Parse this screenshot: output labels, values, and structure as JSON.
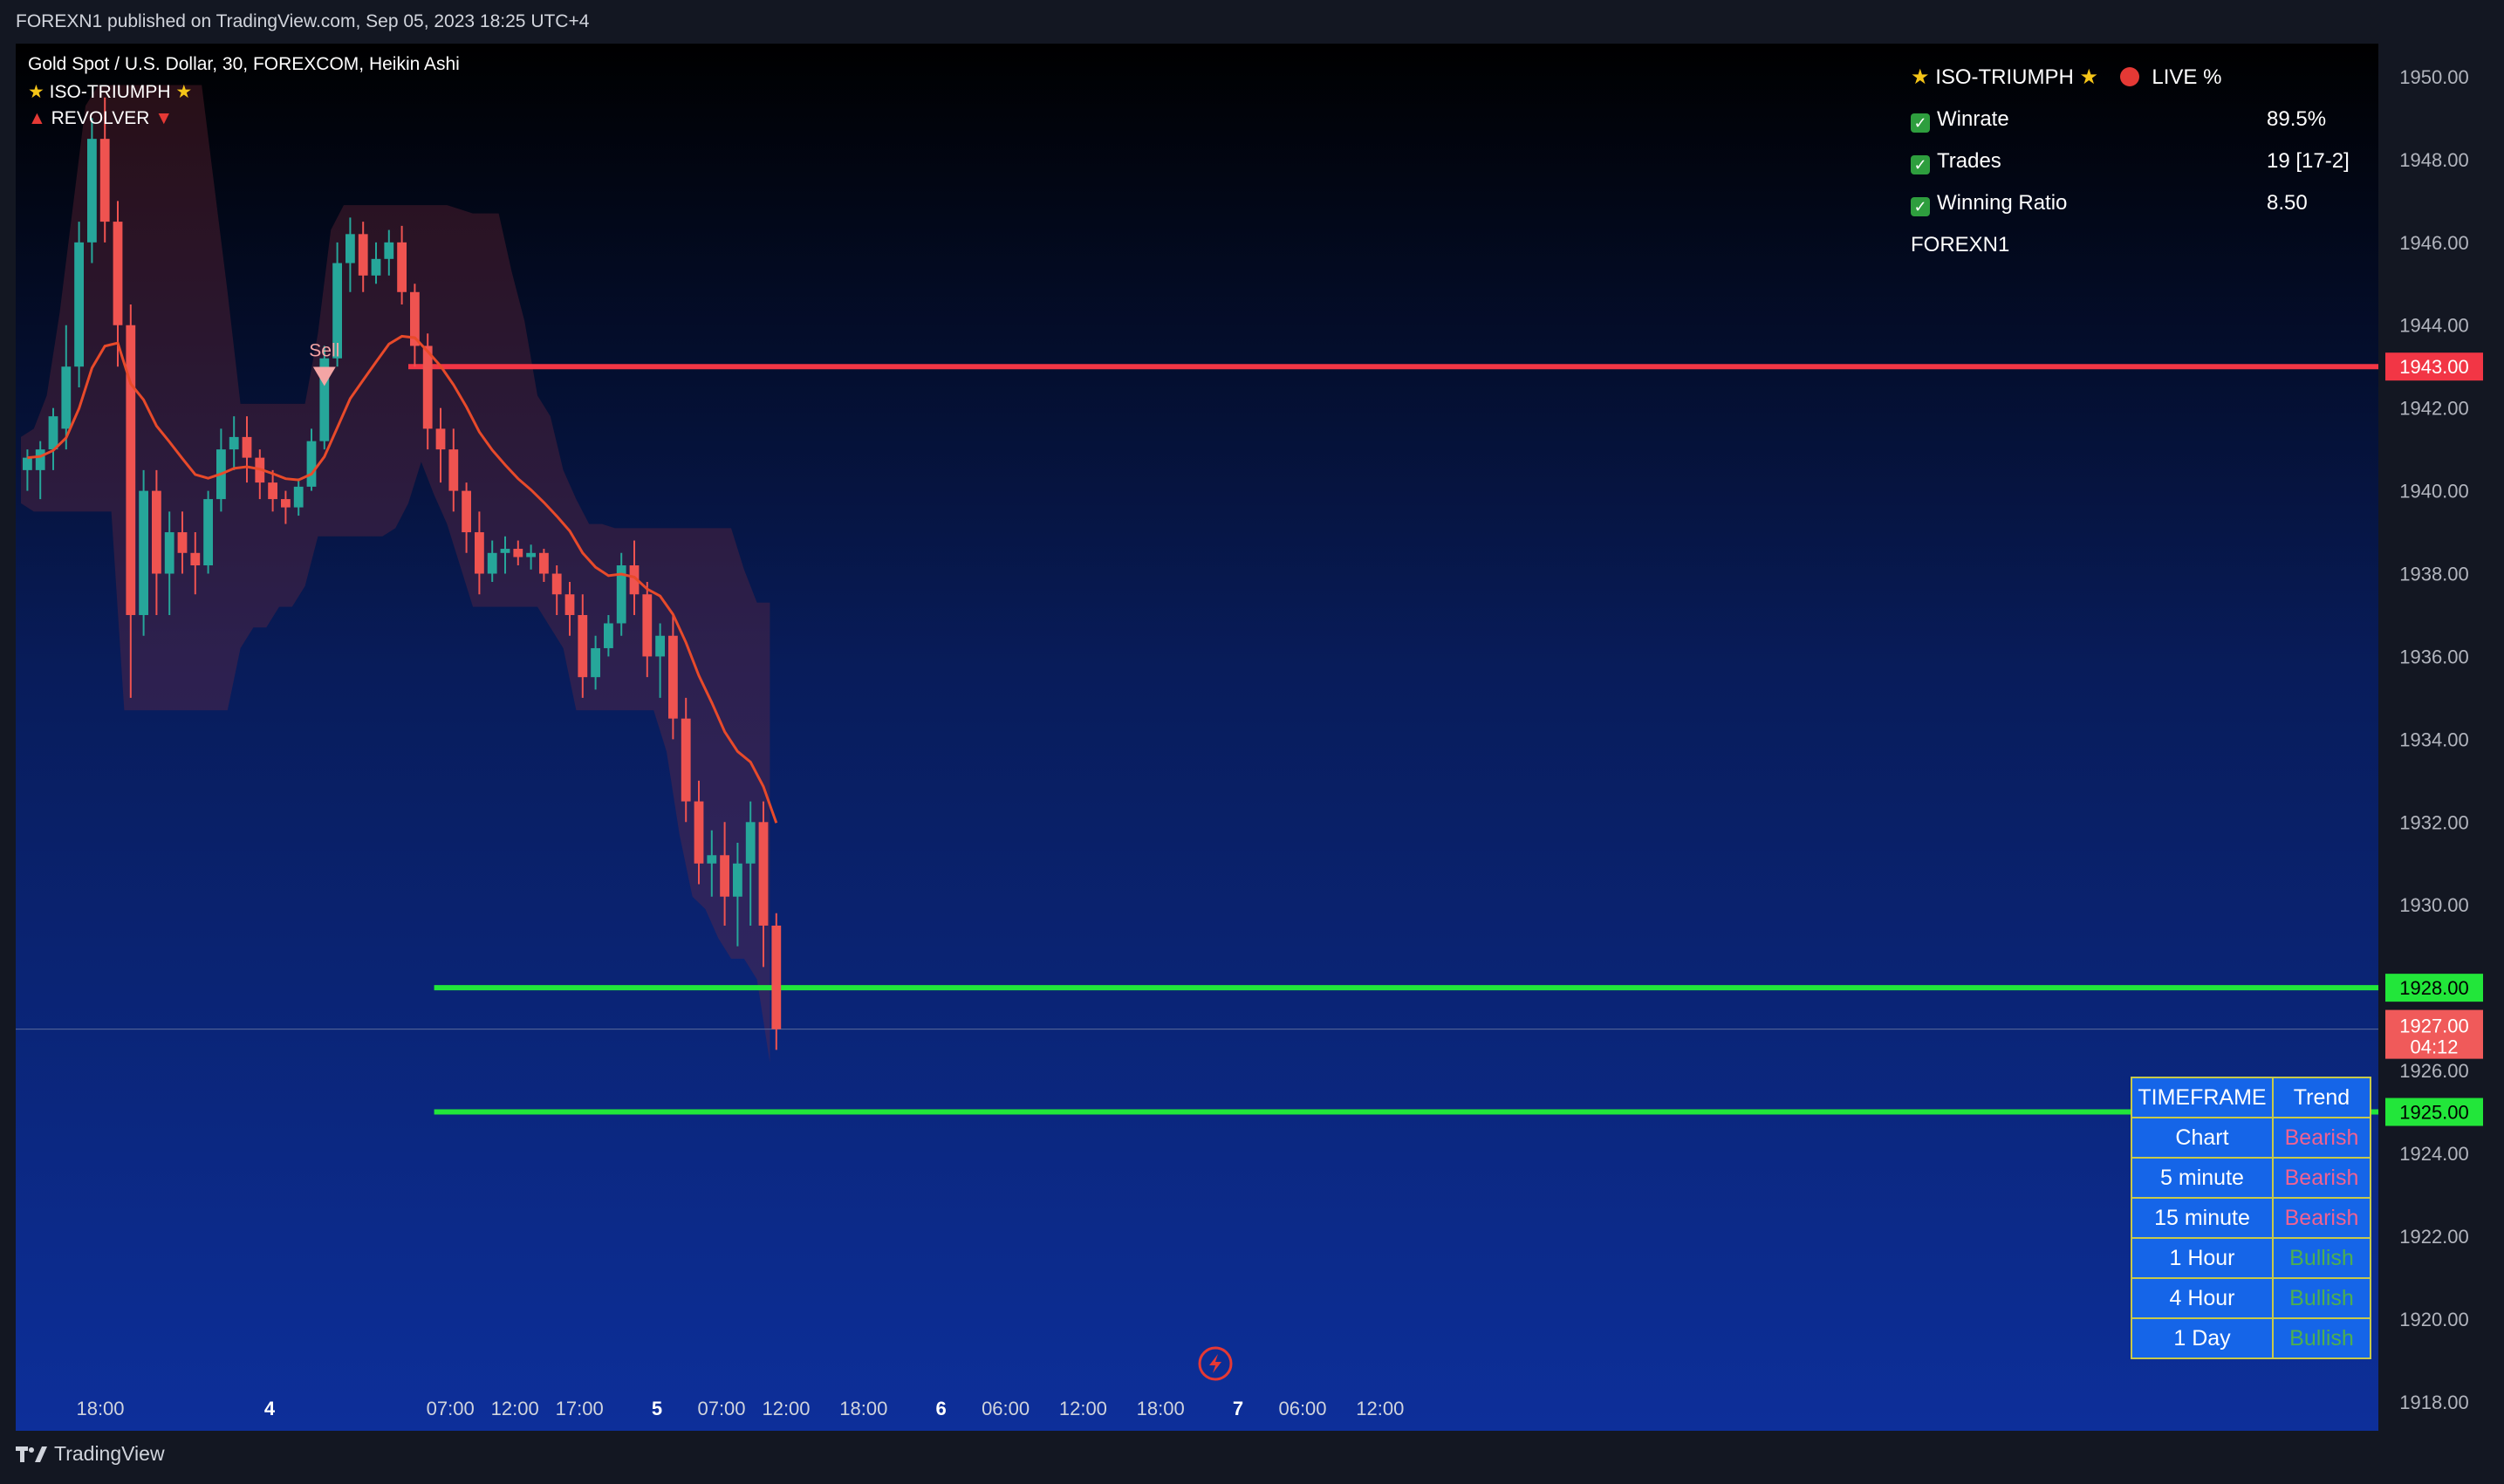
{
  "header": {
    "published": "FOREXN1 published on TradingView.com, Sep 05, 2023 18:25 UTC+4"
  },
  "legend": {
    "symbol": "Gold Spot / U.S. Dollar, 30, FOREXCOM, Heikin Ashi",
    "indicator1": "ISO-TRIUMPH",
    "indicator2": "REVOLVER"
  },
  "stats": {
    "title": "ISO-TRIUMPH",
    "live": "LIVE %",
    "winrate_label": "Winrate",
    "winrate": "89.5%",
    "trades_label": "Trades",
    "trades": "19 [17-2]",
    "ratio_label": "Winning Ratio",
    "ratio": "8.50",
    "author": "FOREXN1"
  },
  "timeframe_table": {
    "headers": [
      "TIMEFRAME",
      "Trend"
    ],
    "rows": [
      {
        "timeframe": "Chart",
        "trend": "Bearish"
      },
      {
        "timeframe": "5 minute",
        "trend": "Bearish"
      },
      {
        "timeframe": "15 minute",
        "trend": "Bearish"
      },
      {
        "timeframe": "1 Hour",
        "trend": "Bullish"
      },
      {
        "timeframe": "4 Hour",
        "trend": "Bullish"
      },
      {
        "timeframe": "1 Day",
        "trend": "Bullish"
      }
    ]
  },
  "footer": {
    "brand": "TradingView"
  },
  "colors": {
    "bull": "#26a69a",
    "bear": "#ef5350",
    "resistance": "#f23645",
    "support": "#22e63a",
    "ema": "#e84a2a",
    "bg_top": "#000000",
    "bg_bottom": "#0d2a8a"
  },
  "chart_data": {
    "type": "candlestick",
    "y_ticks": [
      1950,
      1948,
      1946,
      1944,
      1942,
      1940,
      1938,
      1936,
      1934,
      1932,
      1930,
      1928,
      1926,
      1924,
      1922,
      1920,
      1918
    ],
    "y_tick_labels": [
      "1950.00",
      "1948.00",
      "1946.00",
      "1944.00",
      "1942.00",
      "1940.00",
      "1938.00",
      "1936.00",
      "1934.00",
      "1932.00",
      "1930.00",
      "1926.00",
      "1924.00",
      "1922.00",
      "1920.00",
      "1918.00"
    ],
    "ylim": [
      1917.3,
      1950.8
    ],
    "x_tick_labels": [
      "18:00",
      "4",
      "07:00",
      "12:00",
      "17:00",
      "5",
      "07:00",
      "12:00",
      "18:00",
      "6",
      "06:00",
      "12:00",
      "18:00",
      "7",
      "06:00",
      "12:00"
    ],
    "bars_per_x_tick": [
      0,
      12,
      26,
      31,
      36,
      42,
      47,
      52,
      58,
      64,
      69,
      75,
      81,
      87,
      92,
      98
    ],
    "horizontal_lines": [
      {
        "price": 1943.0,
        "label": "1943.00",
        "role": "resistance",
        "start_bar": 30
      },
      {
        "price": 1928.0,
        "label": "1928.00",
        "role": "support",
        "start_bar": 32
      },
      {
        "price": 1925.0,
        "label": "1925.00",
        "role": "support",
        "start_bar": 32
      }
    ],
    "last_price": {
      "price": 1927.0,
      "label": "1927.00",
      "countdown": "04:12"
    },
    "signals": [
      {
        "bar": 23,
        "label": "Sell",
        "price": 1942.7
      }
    ],
    "candles": [
      [
        1940.5,
        1941.0,
        1940.0,
        1940.8
      ],
      [
        1940.5,
        1941.2,
        1939.8,
        1941.0
      ],
      [
        1941.0,
        1942.0,
        1940.5,
        1941.8
      ],
      [
        1941.5,
        1944.0,
        1941.0,
        1943.0
      ],
      [
        1943.0,
        1946.5,
        1942.5,
        1946.0
      ],
      [
        1946.0,
        1949.0,
        1945.5,
        1948.5
      ],
      [
        1948.5,
        1949.5,
        1946.0,
        1946.5
      ],
      [
        1946.5,
        1947.0,
        1943.0,
        1944.0
      ],
      [
        1944.0,
        1944.5,
        1935.0,
        1937.0
      ],
      [
        1937.0,
        1940.5,
        1936.5,
        1940.0
      ],
      [
        1940.0,
        1940.5,
        1937.0,
        1938.0
      ],
      [
        1938.0,
        1939.5,
        1937.0,
        1939.0
      ],
      [
        1939.0,
        1939.5,
        1938.0,
        1938.5
      ],
      [
        1938.5,
        1939.0,
        1937.5,
        1938.2
      ],
      [
        1938.2,
        1940.0,
        1938.0,
        1939.8
      ],
      [
        1939.8,
        1941.5,
        1939.5,
        1941.0
      ],
      [
        1941.0,
        1941.8,
        1940.5,
        1941.3
      ],
      [
        1941.3,
        1941.8,
        1940.2,
        1940.8
      ],
      [
        1940.8,
        1941.0,
        1939.8,
        1940.2
      ],
      [
        1940.2,
        1940.5,
        1939.5,
        1939.8
      ],
      [
        1939.8,
        1940.0,
        1939.2,
        1939.6
      ],
      [
        1939.6,
        1940.3,
        1939.4,
        1940.1
      ],
      [
        1940.1,
        1941.5,
        1940.0,
        1941.2
      ],
      [
        1941.2,
        1943.5,
        1941.0,
        1943.2
      ],
      [
        1943.2,
        1946.0,
        1943.0,
        1945.5
      ],
      [
        1945.5,
        1946.6,
        1944.8,
        1946.2
      ],
      [
        1946.2,
        1946.5,
        1944.8,
        1945.2
      ],
      [
        1945.2,
        1946.0,
        1945.0,
        1945.6
      ],
      [
        1945.6,
        1946.3,
        1945.2,
        1946.0
      ],
      [
        1946.0,
        1946.4,
        1944.5,
        1944.8
      ],
      [
        1944.8,
        1945.0,
        1943.0,
        1943.5
      ],
      [
        1943.5,
        1943.8,
        1941.0,
        1941.5
      ],
      [
        1941.5,
        1942.0,
        1940.2,
        1941.0
      ],
      [
        1941.0,
        1941.5,
        1939.5,
        1940.0
      ],
      [
        1940.0,
        1940.2,
        1938.5,
        1939.0
      ],
      [
        1939.0,
        1939.5,
        1937.5,
        1938.0
      ],
      [
        1938.0,
        1938.8,
        1937.8,
        1938.5
      ],
      [
        1938.5,
        1938.9,
        1938.0,
        1938.6
      ],
      [
        1938.6,
        1938.8,
        1938.2,
        1938.4
      ],
      [
        1938.4,
        1938.7,
        1938.1,
        1938.5
      ],
      [
        1938.5,
        1938.6,
        1937.8,
        1938.0
      ],
      [
        1938.0,
        1938.2,
        1937.0,
        1937.5
      ],
      [
        1937.5,
        1937.8,
        1936.5,
        1937.0
      ],
      [
        1937.0,
        1937.5,
        1935.0,
        1935.5
      ],
      [
        1935.5,
        1936.5,
        1935.2,
        1936.2
      ],
      [
        1936.2,
        1937.0,
        1936.0,
        1936.8
      ],
      [
        1936.8,
        1938.5,
        1936.5,
        1938.2
      ],
      [
        1938.2,
        1938.8,
        1937.0,
        1937.5
      ],
      [
        1937.5,
        1937.8,
        1935.5,
        1936.0
      ],
      [
        1936.0,
        1936.8,
        1935.0,
        1936.5
      ],
      [
        1936.5,
        1937.0,
        1934.0,
        1934.5
      ],
      [
        1934.5,
        1935.0,
        1932.0,
        1932.5
      ],
      [
        1932.5,
        1933.0,
        1930.5,
        1931.0
      ],
      [
        1931.0,
        1931.8,
        1930.2,
        1931.2
      ],
      [
        1931.2,
        1932.0,
        1929.5,
        1930.2
      ],
      [
        1930.2,
        1931.5,
        1929.0,
        1931.0
      ],
      [
        1931.0,
        1932.5,
        1929.5,
        1932.0
      ],
      [
        1932.0,
        1932.5,
        1928.5,
        1929.5
      ],
      [
        1929.5,
        1929.8,
        1926.5,
        1927.0
      ]
    ]
  }
}
